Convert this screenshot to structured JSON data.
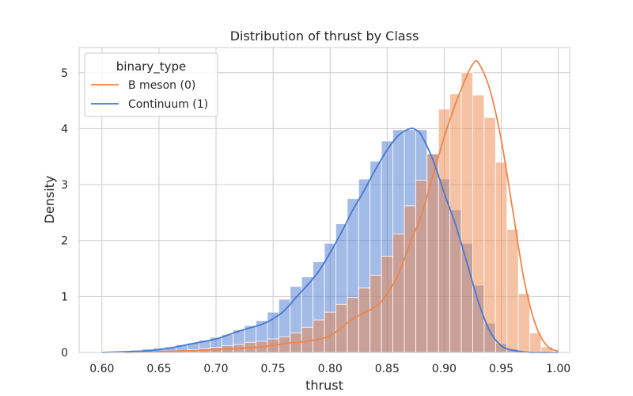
{
  "chart_data": {
    "type": "histogram",
    "title": "Distribution of thrust by Class",
    "xlabel": "thrust",
    "ylabel": "Density",
    "xlim": [
      0.58,
      1.01
    ],
    "ylim": [
      0,
      5.45
    ],
    "x_ticks": [
      "0.60",
      "0.65",
      "0.70",
      "0.75",
      "0.80",
      "0.85",
      "0.90",
      "0.95",
      "1.00"
    ],
    "y_ticks": [
      "0",
      "1",
      "2",
      "3",
      "4",
      "5"
    ],
    "grid": true,
    "legend": {
      "title": "binary_type",
      "placement": "upper-left",
      "entries": [
        "B meson (0)",
        "Continuum (1)"
      ]
    },
    "bin_width": 0.01,
    "bin_start": 0.595,
    "series": [
      {
        "name": "B meson (0)",
        "color": "#ee854a",
        "densities": [
          0.0,
          0.0,
          0.0,
          0.0,
          0.0,
          0.01,
          0.02,
          0.03,
          0.05,
          0.07,
          0.09,
          0.12,
          0.14,
          0.18,
          0.2,
          0.24,
          0.28,
          0.35,
          0.45,
          0.58,
          0.72,
          0.86,
          0.98,
          1.15,
          1.38,
          1.72,
          2.12,
          2.62,
          3.08,
          3.55,
          4.35,
          4.62,
          5.0,
          4.6,
          4.2,
          3.4,
          2.2,
          1.05,
          0.35,
          0.1
        ],
        "kde_x": [
          0.62,
          0.66,
          0.7,
          0.74,
          0.76,
          0.78,
          0.8,
          0.82,
          0.84,
          0.85,
          0.86,
          0.87,
          0.88,
          0.89,
          0.9,
          0.91,
          0.92,
          0.925,
          0.93,
          0.94,
          0.95,
          0.96,
          0.97,
          0.98,
          0.99,
          1.0
        ],
        "kde_y": [
          0.0,
          0.02,
          0.05,
          0.1,
          0.16,
          0.2,
          0.3,
          0.6,
          0.82,
          1.05,
          1.4,
          1.95,
          2.45,
          3.15,
          3.85,
          4.45,
          4.95,
          5.15,
          5.18,
          4.7,
          3.8,
          2.55,
          1.3,
          0.5,
          0.12,
          0.02
        ]
      },
      {
        "name": "Continuum (1)",
        "color": "#4878d0",
        "densities": [
          0.01,
          0.02,
          0.03,
          0.04,
          0.06,
          0.08,
          0.1,
          0.14,
          0.17,
          0.22,
          0.27,
          0.32,
          0.4,
          0.48,
          0.57,
          0.72,
          0.95,
          1.18,
          1.35,
          1.62,
          1.95,
          2.3,
          2.75,
          3.1,
          3.42,
          3.78,
          3.98,
          3.98,
          3.98,
          3.55,
          3.1,
          2.55,
          1.95,
          1.2,
          0.52,
          0.16,
          0.06,
          0.02,
          0.01,
          0.0
        ],
        "kde_x": [
          0.6,
          0.64,
          0.66,
          0.68,
          0.7,
          0.72,
          0.74,
          0.75,
          0.76,
          0.77,
          0.78,
          0.79,
          0.8,
          0.81,
          0.82,
          0.83,
          0.84,
          0.85,
          0.86,
          0.87,
          0.875,
          0.88,
          0.89,
          0.9,
          0.91,
          0.92,
          0.93,
          0.94,
          0.95,
          0.96,
          0.97,
          0.98,
          1.0
        ],
        "kde_y": [
          0.0,
          0.03,
          0.08,
          0.16,
          0.24,
          0.38,
          0.5,
          0.6,
          0.75,
          0.98,
          1.2,
          1.45,
          1.78,
          2.15,
          2.55,
          2.9,
          3.28,
          3.62,
          3.88,
          4.0,
          3.98,
          3.88,
          3.45,
          2.85,
          2.28,
          1.6,
          0.9,
          0.38,
          0.12,
          0.04,
          0.01,
          0.0,
          0.0
        ]
      }
    ]
  }
}
